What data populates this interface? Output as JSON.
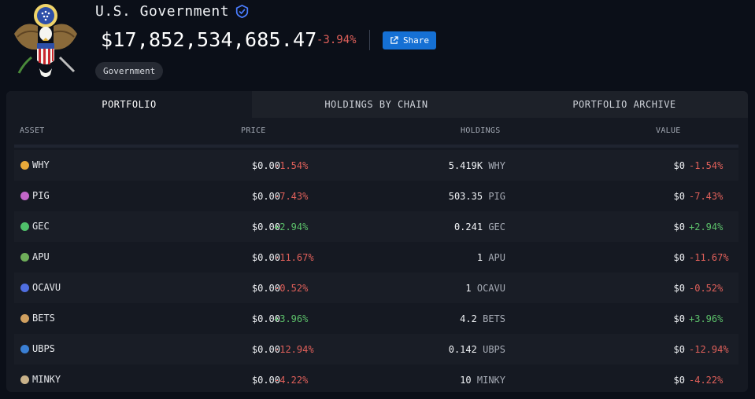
{
  "entity": {
    "name": "U.S. Government",
    "balance": "$17,852,534,685.47",
    "change": "-3.94%",
    "share_label": "Share",
    "tag": "Government"
  },
  "tabs": [
    {
      "label": "PORTFOLIO",
      "active": true
    },
    {
      "label": "HOLDINGS BY CHAIN",
      "active": false
    },
    {
      "label": "PORTFOLIO ARCHIVE",
      "active": false
    }
  ],
  "table": {
    "headers": {
      "asset": "ASSET",
      "price": "PRICE",
      "holdings": "HOLDINGS",
      "value": "VALUE"
    },
    "rows": [
      {
        "asset": "WHY",
        "price": "$0.00",
        "price_change": "-1.54%",
        "amount": "5.419K",
        "symbol": "WHY",
        "value": "$0",
        "value_change": "-1.54%",
        "icon_color": "#e8a93a"
      },
      {
        "asset": "PIG",
        "price": "$0.00",
        "price_change": "-7.43%",
        "amount": "503.35",
        "symbol": "PIG",
        "value": "$0",
        "value_change": "-7.43%",
        "icon_color": "#c266c9"
      },
      {
        "asset": "GEC",
        "price": "$0.00",
        "price_change": "+2.94%",
        "amount": "0.241",
        "symbol": "GEC",
        "value": "$0",
        "value_change": "+2.94%",
        "icon_color": "#4fbf6a"
      },
      {
        "asset": "APU",
        "price": "$0.00",
        "price_change": "-11.67%",
        "amount": "1",
        "symbol": "APU",
        "value": "$0",
        "value_change": "-11.67%",
        "icon_color": "#6fae5a"
      },
      {
        "asset": "OCAVU",
        "price": "$0.00",
        "price_change": "-0.52%",
        "amount": "1",
        "symbol": "OCAVU",
        "value": "$0",
        "value_change": "-0.52%",
        "icon_color": "#4f6ee0"
      },
      {
        "asset": "BETS",
        "price": "$0.00",
        "price_change": "+3.96%",
        "amount": "4.2",
        "symbol": "BETS",
        "value": "$0",
        "value_change": "+3.96%",
        "icon_color": "#d0a060"
      },
      {
        "asset": "UBPS",
        "price": "$0.00",
        "price_change": "-12.94%",
        "amount": "0.142",
        "symbol": "UBPS",
        "value": "$0",
        "value_change": "-12.94%",
        "icon_color": "#3a7fd4"
      },
      {
        "asset": "MINKY",
        "price": "$0.00",
        "price_change": "-4.22%",
        "amount": "10",
        "symbol": "MINKY",
        "value": "$0",
        "value_change": "-4.22%",
        "icon_color": "#c9b28a"
      }
    ]
  },
  "colors": {
    "accent": "#1570d4",
    "negative": "#e0605a",
    "positive": "#5cc06a",
    "verified": "#4a7dff"
  }
}
